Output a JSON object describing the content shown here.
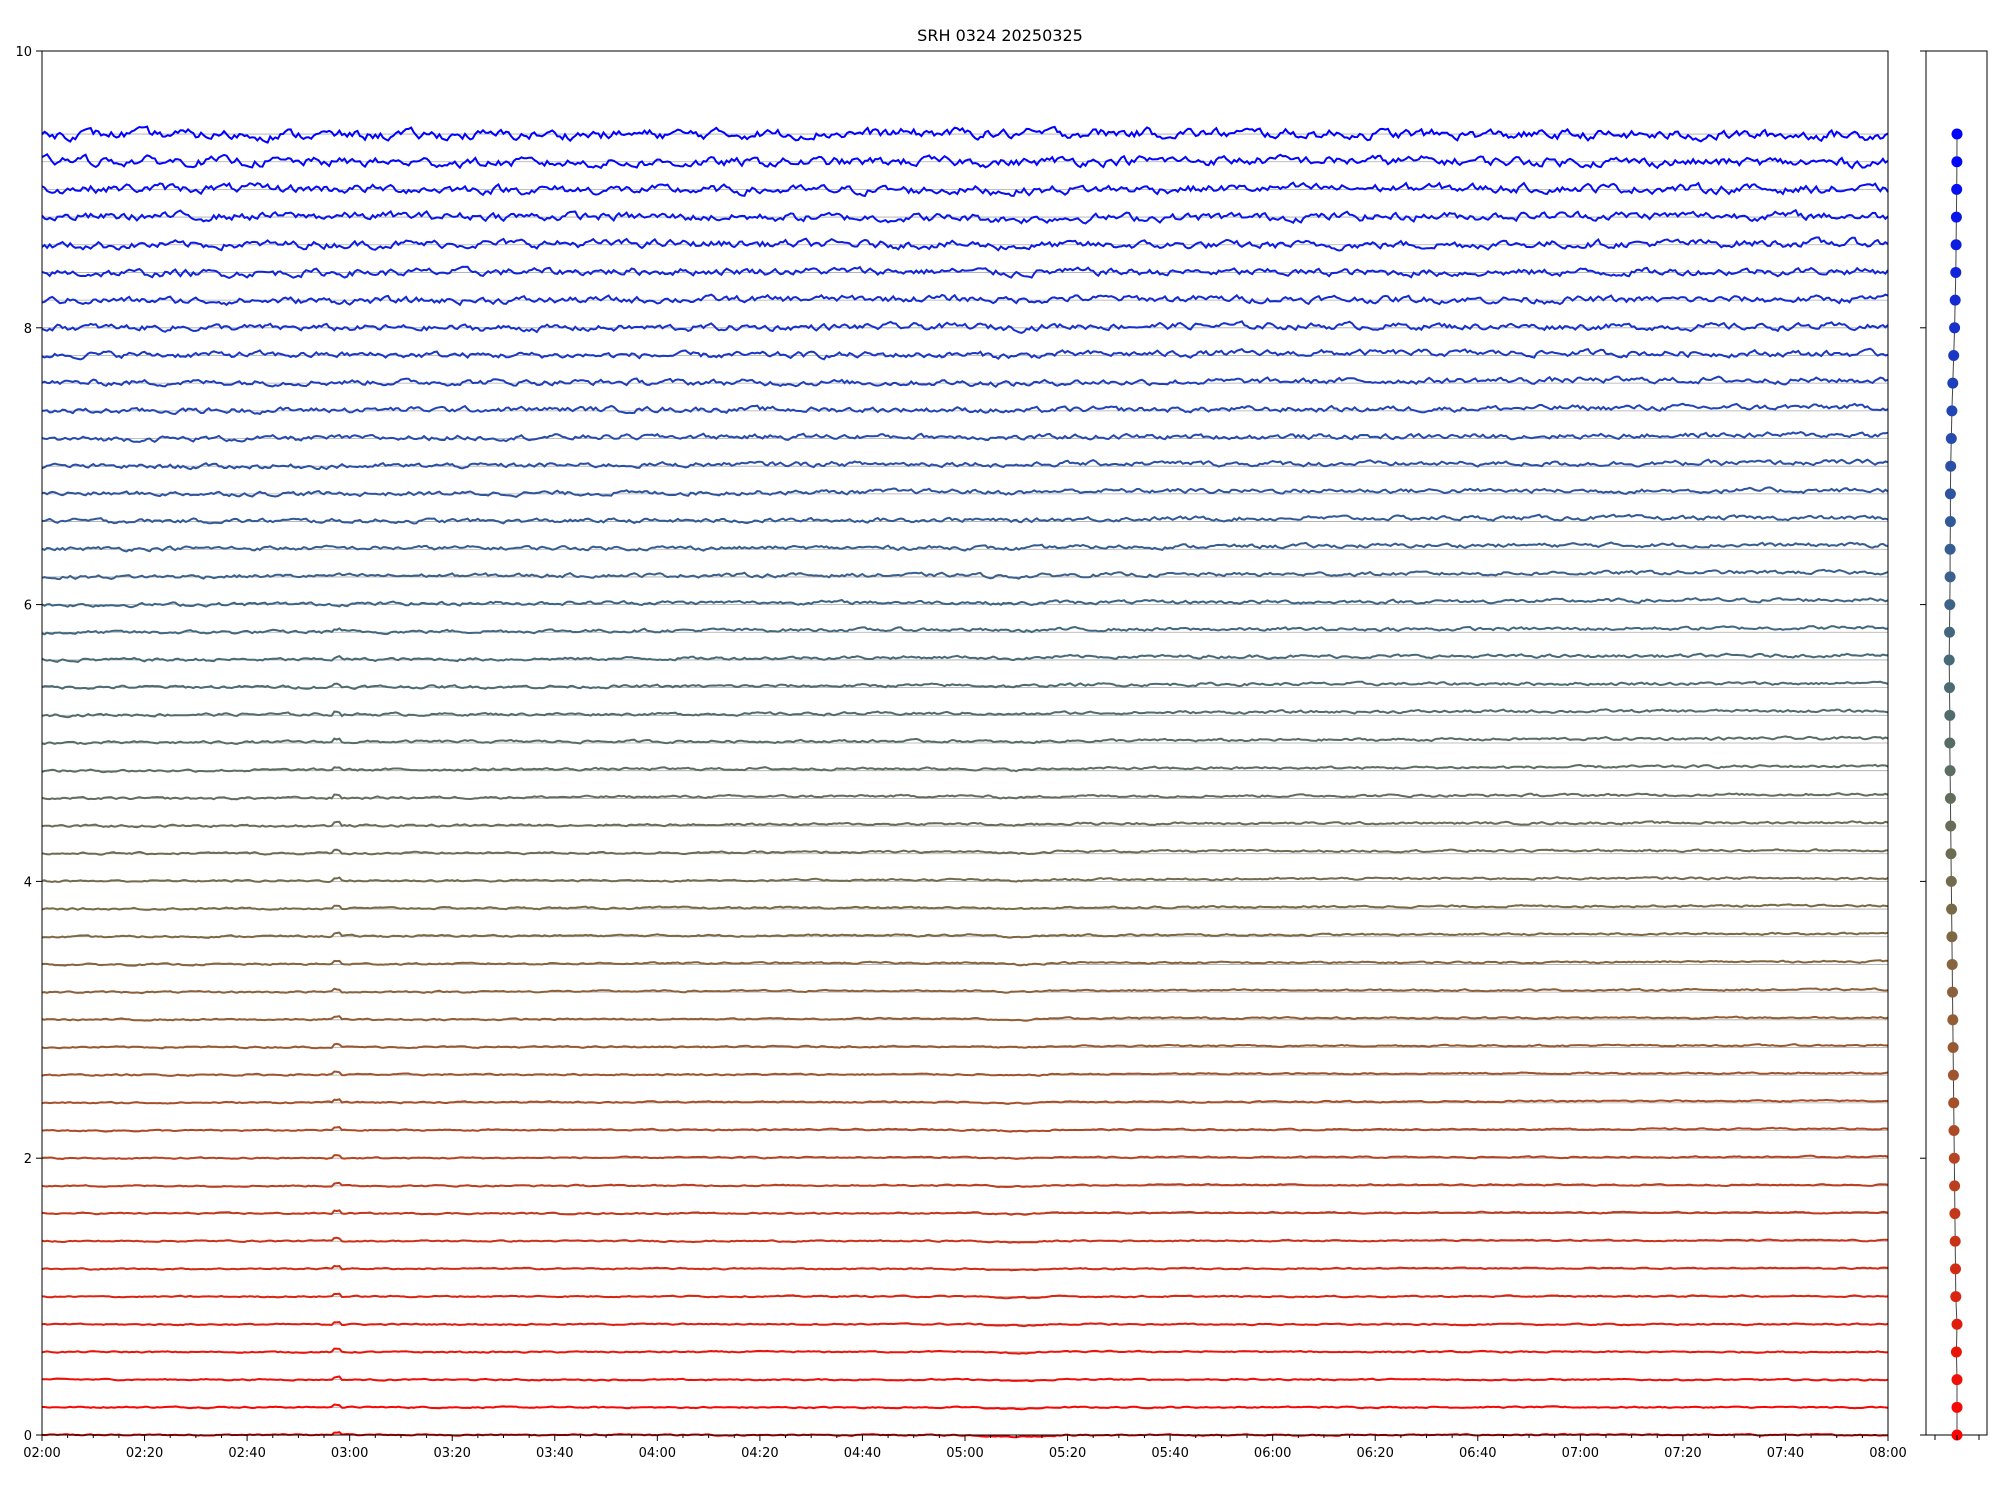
{
  "chart_data": {
    "type": "line",
    "title": "SRH 0324 20250325",
    "xlabel": "",
    "ylabel": "",
    "x_start": "02:00",
    "x_end": "08:00",
    "xlim_minutes": [
      0,
      360
    ],
    "ylim": [
      0,
      10
    ],
    "x_tick_labels": [
      "02:00",
      "02:20",
      "02:40",
      "03:00",
      "03:20",
      "03:40",
      "04:00",
      "04:20",
      "04:40",
      "05:00",
      "05:20",
      "05:40",
      "06:00",
      "06:20",
      "06:40",
      "07:00",
      "07:20",
      "07:40",
      "08:00"
    ],
    "y_tick_values": [
      0,
      2,
      4,
      6,
      8,
      10
    ],
    "y_tick_labels": [
      "0",
      "2",
      "4",
      "6",
      "8",
      "10"
    ],
    "grid": "horizontal lines at each trace baseline",
    "legend": "none",
    "num_series": 48,
    "baseline_step": 0.2,
    "color_start": "#ff0000",
    "color_end": "#0000ff",
    "gridline_color": "#aaaaaa",
    "trace_offsets": [
      0.0,
      0.0,
      0.0,
      -0.01,
      0.0,
      -0.02,
      -0.03,
      -0.04,
      -0.05,
      -0.06,
      -0.07,
      -0.08,
      -0.09,
      -0.1,
      -0.11,
      -0.12,
      -0.13,
      -0.14,
      -0.15,
      -0.16,
      -0.17,
      -0.18,
      -0.19,
      -0.2,
      -0.21,
      -0.22,
      -0.22,
      -0.23,
      -0.24,
      -0.23,
      -0.22,
      -0.21,
      -0.21,
      -0.2,
      -0.2,
      -0.19,
      -0.17,
      -0.15,
      -0.13,
      -0.11,
      -0.09,
      -0.07,
      -0.05,
      -0.04,
      -0.03,
      -0.02,
      -0.01,
      0.0
    ],
    "side_panel": {
      "type": "scatter",
      "description_free": true,
      "point_y_values": [
        0.0,
        0.2,
        0.4,
        0.6,
        0.8,
        1.0,
        1.2,
        1.4,
        1.6,
        1.8,
        2.0,
        2.2,
        2.4,
        2.6,
        2.8,
        3.0,
        3.2,
        3.4,
        3.6,
        3.8,
        4.0,
        4.2,
        4.4,
        4.6,
        4.8,
        5.0,
        5.2,
        5.4,
        5.6,
        5.8,
        6.0,
        6.2,
        6.4,
        6.6,
        6.8,
        7.0,
        7.2,
        7.4,
        7.6,
        7.8,
        8.0,
        8.2,
        8.4,
        8.6,
        8.8,
        9.0,
        9.2,
        9.4
      ],
      "point_x_offsets": [
        0.0,
        0.0,
        0.0,
        -0.1,
        0.0,
        -0.2,
        -0.25,
        -0.3,
        -0.35,
        -0.4,
        -0.45,
        -0.5,
        -0.55,
        -0.6,
        -0.65,
        -0.7,
        -0.75,
        -0.8,
        -0.85,
        -0.9,
        -0.95,
        -1.0,
        -1.05,
        -1.1,
        -1.15,
        -1.2,
        -1.2,
        -1.25,
        -1.3,
        -1.25,
        -1.2,
        -1.15,
        -1.15,
        -1.1,
        -1.1,
        -1.05,
        -0.95,
        -0.85,
        -0.7,
        -0.55,
        -0.4,
        -0.3,
        -0.2,
        -0.15,
        -0.1,
        -0.05,
        -0.02,
        0.0
      ]
    }
  }
}
